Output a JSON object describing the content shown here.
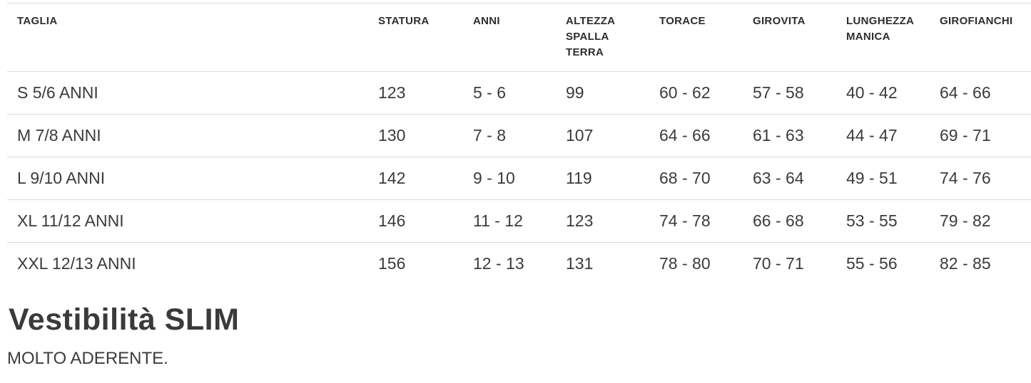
{
  "table": {
    "columns": [
      {
        "label": "TAGLIA"
      },
      {
        "label": "STATURA"
      },
      {
        "label": "ANNI"
      },
      {
        "label": "ALTEZZA\nSPALLA\nTERRA"
      },
      {
        "label": "TORACE"
      },
      {
        "label": "GIROVITA"
      },
      {
        "label": "LUNGHEZZA\nMANICA"
      },
      {
        "label": "GIROFIANCHI"
      }
    ],
    "rows": [
      [
        "S 5/6 ANNI",
        "123",
        "5 - 6",
        "99",
        "60 - 62",
        "57 - 58",
        "40 - 42",
        "64 - 66"
      ],
      [
        "M 7/8 ANNI",
        "130",
        "7 - 8",
        "107",
        "64 - 66",
        "61 - 63",
        "44 - 47",
        "69 - 71"
      ],
      [
        "L 9/10 ANNI",
        "142",
        "9 - 10",
        "119",
        "68 - 70",
        "63 - 64",
        "49 - 51",
        "74 - 76"
      ],
      [
        "XL 11/12 ANNI",
        "146",
        "11 - 12",
        "123",
        "74 - 78",
        "66 - 68",
        "53 - 55",
        "79 - 82"
      ],
      [
        "XXL 12/13 ANNI",
        "156",
        "12 - 13",
        "131",
        "78 - 80",
        "70 - 71",
        "55 - 56",
        "82 - 85"
      ]
    ]
  },
  "fit": {
    "title": "Vestibilità SLIM",
    "description": "MOLTO ADERENTE."
  },
  "colors": {
    "header_text": "#2d2d2d",
    "body_text": "#3b3b3b",
    "border": "#dcdcdc",
    "background": "#ffffff"
  }
}
